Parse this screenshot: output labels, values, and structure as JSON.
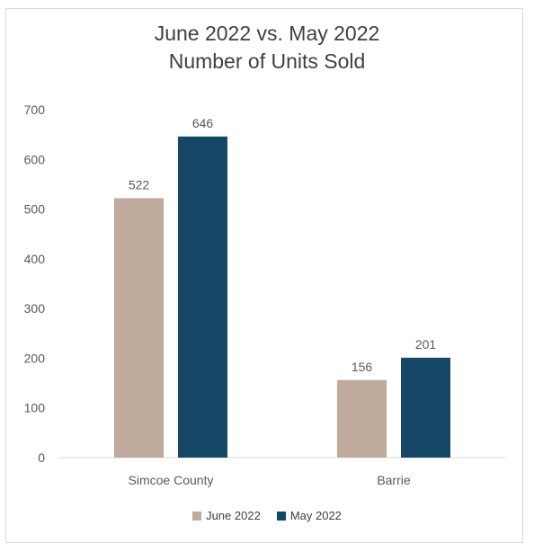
{
  "chart_data": {
    "type": "bar",
    "title_line1": "June 2022 vs. May 2022",
    "title_line2": "Number of Units Sold",
    "categories": [
      "Simcoe County",
      "Barrie"
    ],
    "series": [
      {
        "name": "June 2022",
        "values": [
          522,
          156
        ],
        "color": "#c0aa9b"
      },
      {
        "name": "May 2022",
        "values": [
          646,
          201
        ],
        "color": "#154766"
      }
    ],
    "ylim": [
      0,
      700
    ],
    "yticks": [
      "0",
      "100",
      "200",
      "300",
      "400",
      "500",
      "600",
      "700"
    ],
    "grid": false,
    "legend_position": "bottom",
    "data_labels": true
  }
}
